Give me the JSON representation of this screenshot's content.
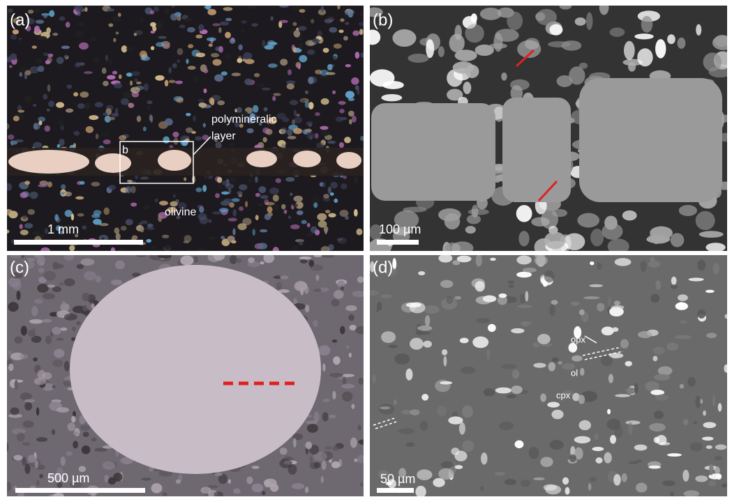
{
  "panels": [
    {
      "label": "(a)",
      "scale_bar": "1 mm",
      "annotations": [
        "polymineralic",
        "layer",
        "b",
        "olivine"
      ]
    },
    {
      "label": "(b)",
      "scale_bar": "100 µm",
      "annotations": []
    },
    {
      "label": "(c)",
      "scale_bar": "500 µm",
      "annotations": []
    },
    {
      "label": "(d)",
      "scale_bar": "50 µm",
      "annotations": [
        "opx",
        "ol",
        "cpx"
      ]
    }
  ]
}
